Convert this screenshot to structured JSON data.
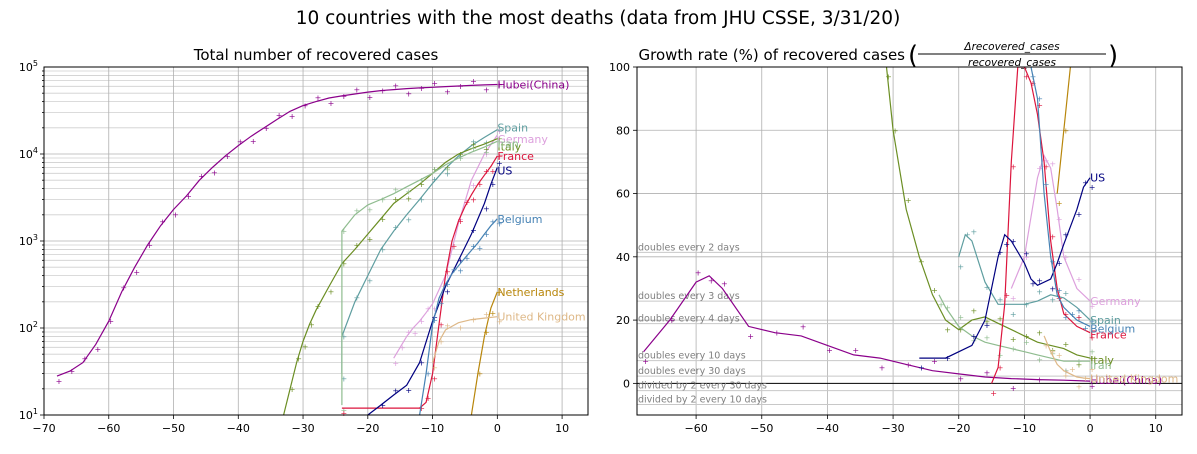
{
  "figure_title": "10 countries with the most deaths (data from JHU CSSE, 3/31/20)",
  "colors": {
    "Hubei(China)": "#8b008b",
    "Spain": "#5f9ea0",
    "Germany": "#dda0dd",
    "Italy": "#6b8e23",
    "Iran": "#8fbc8f",
    "France": "#dc143c",
    "US": "#000080",
    "Belgium": "#4682b4",
    "Netherlands": "#b8860b",
    "United Kingdom": "#deb887"
  },
  "chart_data": [
    {
      "type": "line",
      "title": "Total number of recovered cases",
      "yscale": "log",
      "xlim": [
        -70,
        14
      ],
      "ylim": [
        10,
        100000
      ],
      "xticks": [
        "−70",
        "−60",
        "−50",
        "−40",
        "−30",
        "−20",
        "−10",
        "0",
        "10"
      ],
      "yticks": [
        "10^1",
        "10^2",
        "10^3",
        "10^4",
        "10^5"
      ],
      "grid": true,
      "series": [
        {
          "name": "Hubei(China)",
          "label_value": 63000,
          "x": [
            -68,
            -66,
            -64,
            -62,
            -60,
            -58,
            -56,
            -54,
            -52,
            -50,
            -48,
            -46,
            -44,
            -42,
            -40,
            -38,
            -36,
            -34,
            -32,
            -30,
            -28,
            -26,
            -24,
            -22,
            -20,
            -18,
            -16,
            -14,
            -12,
            -10,
            -8,
            -6,
            -4,
            -2,
            0
          ],
          "y": [
            28,
            32,
            40,
            65,
            120,
            260,
            500,
            900,
            1500,
            2300,
            3300,
            5000,
            7000,
            9500,
            12500,
            16000,
            20000,
            25000,
            31000,
            36000,
            40000,
            44000,
            46500,
            49000,
            51500,
            53500,
            55000,
            56500,
            57500,
            58500,
            59500,
            60500,
            61500,
            62300,
            63000
          ]
        },
        {
          "name": "Spain",
          "label_value": 19000,
          "x": [
            -24,
            -24,
            -22,
            -20,
            -18,
            -16,
            -14,
            -12,
            -10,
            -8,
            -6,
            -4,
            -2,
            0
          ],
          "y": [
            30,
            80,
            200,
            400,
            800,
            1300,
            2000,
            3000,
            4600,
            6800,
            9500,
            12500,
            15500,
            19000
          ]
        },
        {
          "name": "Germany",
          "label_value": 16500,
          "x": [
            -16,
            -15,
            -14,
            -13,
            -12,
            -11,
            -10,
            -8,
            -6,
            -4,
            -2,
            0
          ],
          "y": [
            45,
            60,
            80,
            100,
            120,
            150,
            190,
            400,
            1600,
            5000,
            10000,
            16500
          ]
        },
        {
          "name": "Italy",
          "label_value": 15000,
          "x": [
            -33,
            -32,
            -31,
            -30,
            -29,
            -28,
            -26,
            -24,
            -22,
            -20,
            -18,
            -16,
            -14,
            -12,
            -10,
            -8,
            -6,
            -4,
            -2,
            0
          ],
          "y": [
            10,
            20,
            40,
            70,
            110,
            160,
            300,
            550,
            800,
            1200,
            1800,
            2700,
            3500,
            4500,
            6000,
            8000,
            10000,
            11500,
            13000,
            15000
          ]
        },
        {
          "name": "Iran",
          "label_value": 14000,
          "x": [
            -24,
            -24,
            -22,
            -20,
            -18,
            -16,
            -14,
            -12,
            -10,
            -8,
            -6,
            -4,
            -2,
            0
          ],
          "y": [
            13,
            1300,
            2000,
            2600,
            3000,
            3500,
            4200,
            5000,
            6000,
            7500,
            9000,
            10500,
            12000,
            14000
          ]
        },
        {
          "name": "France",
          "label_value": 9500,
          "x": [
            -24,
            -12,
            -11,
            -10,
            -9,
            -8,
            -7,
            -6,
            -5,
            -4,
            -3,
            -2,
            -1,
            0
          ],
          "y": [
            12,
            12,
            14,
            30,
            110,
            400,
            1000,
            1700,
            2500,
            3400,
            4500,
            5700,
            7200,
            9500
          ]
        },
        {
          "name": "US",
          "label_value": 7000,
          "x": [
            -20,
            -18,
            -16,
            -14,
            -12,
            -10,
            -8,
            -6,
            -4,
            -2,
            -1,
            0
          ],
          "y": [
            10,
            13,
            17,
            22,
            40,
            120,
            300,
            600,
            1200,
            2700,
            4500,
            7000
          ]
        },
        {
          "name": "Belgium",
          "label_value": 1800,
          "x": [
            -12,
            -11,
            -10,
            -9,
            -8,
            -7,
            -6,
            -5,
            -4,
            -3,
            -2,
            -1,
            0
          ],
          "y": [
            10,
            30,
            110,
            220,
            320,
            420,
            520,
            640,
            780,
            950,
            1200,
            1500,
            1800
          ]
        },
        {
          "name": "Netherlands",
          "label_value": 260,
          "x": [
            -4,
            -3,
            -2,
            -1,
            0
          ],
          "y": [
            10,
            30,
            80,
            170,
            260
          ]
        },
        {
          "name": "United Kingdom",
          "label_value": 135,
          "x": [
            -10,
            -9,
            -8,
            -6,
            -4,
            -2,
            0
          ],
          "y": [
            40,
            70,
            95,
            115,
            125,
            130,
            135
          ]
        }
      ]
    },
    {
      "type": "line",
      "title": "Growth rate (%) of recovered cases",
      "title_fraction": {
        "numerator": "Δrecovered_cases",
        "denominator": "recovered_cases"
      },
      "xlim": [
        -69,
        14
      ],
      "ylim": [
        -10,
        100
      ],
      "xticks": [
        "−60",
        "−50",
        "−40",
        "−30",
        "−20",
        "−10",
        "0",
        "10"
      ],
      "yticks": [
        "0",
        "20",
        "40",
        "60",
        "80",
        "100"
      ],
      "grid": true,
      "reference_lines": [
        {
          "label": "doubles every 2 days",
          "value": 41.4
        },
        {
          "label": "doubles every 3 days",
          "value": 26
        },
        {
          "label": "doubles every 4 days",
          "value": 18.9
        },
        {
          "label": "doubles every 10 days",
          "value": 7.2
        },
        {
          "label": "doubles every 30 days",
          "value": 2.3
        },
        {
          "label": "divided by 2 every 30 days",
          "value": -2.3
        },
        {
          "label": "divided by 2 every 10 days",
          "value": -6.7
        }
      ],
      "series": [
        {
          "name": "Hubei(China)",
          "label_value": 1,
          "x": [
            -68,
            -64,
            -60,
            -58,
            -56,
            -52,
            -48,
            -44,
            -40,
            -36,
            -32,
            -28,
            -24,
            -20,
            -16,
            -12,
            -8,
            -4,
            0
          ],
          "y": [
            10,
            20,
            32,
            34,
            30,
            18,
            16,
            15,
            12,
            9,
            8,
            6,
            4,
            3,
            2,
            1.5,
            1.2,
            1,
            0.7
          ]
        },
        {
          "name": "Spain",
          "label_value": 20,
          "x": [
            -20,
            -19,
            -18,
            -16,
            -14,
            -12,
            -10,
            -8,
            -6,
            -4,
            -2,
            0
          ],
          "y": [
            40,
            47,
            45,
            32,
            25,
            25,
            25,
            26,
            28,
            27,
            24,
            20
          ]
        },
        {
          "name": "Germany",
          "label_value": 26,
          "x": [
            -12,
            -10,
            -8,
            -7,
            -6,
            -5,
            -4,
            -2,
            0
          ],
          "y": [
            30,
            40,
            65,
            72,
            68,
            55,
            40,
            30,
            26
          ]
        },
        {
          "name": "Italy",
          "label_value": 8,
          "x": [
            -31,
            -30,
            -28,
            -26,
            -24,
            -22,
            -20,
            -18,
            -16,
            -14,
            -12,
            -10,
            -8,
            -6,
            -4,
            -2,
            0
          ],
          "y": [
            100,
            80,
            55,
            40,
            28,
            20,
            17,
            20,
            21,
            19,
            17,
            15,
            13,
            12,
            11,
            9,
            8
          ]
        },
        {
          "name": "Iran",
          "label_value": 7,
          "x": [
            -23,
            -22,
            -20,
            -18,
            -16,
            -14,
            -12,
            -10,
            -8,
            -6,
            -4,
            -2,
            0
          ],
          "y": [
            28,
            24,
            18,
            15,
            13,
            12,
            11,
            10,
            9,
            8,
            7,
            7,
            7
          ]
        },
        {
          "name": "France",
          "label_value": 16,
          "x": [
            -15,
            -14,
            -13,
            -12,
            -11,
            -10,
            -9,
            -8,
            -7,
            -6,
            -5,
            -4,
            -2,
            0
          ],
          "y": [
            0,
            5,
            25,
            70,
            100,
            100,
            95,
            85,
            70,
            45,
            30,
            22,
            18,
            16
          ]
        },
        {
          "name": "US",
          "label_value": 65,
          "x": [
            -26,
            -22,
            -18,
            -16,
            -14,
            -13,
            -12,
            -10,
            -9,
            -8,
            -6,
            -5,
            -4,
            -2,
            -1,
            0
          ],
          "y": [
            8,
            8,
            12,
            20,
            40,
            47,
            45,
            38,
            33,
            31,
            33,
            38,
            44,
            55,
            62,
            65
          ]
        },
        {
          "name": "Belgium",
          "label_value": 18,
          "x": [
            -9,
            -8,
            -7,
            -6,
            -5,
            -4,
            -3,
            -2,
            -1,
            0
          ],
          "y": [
            100,
            90,
            60,
            40,
            28,
            24,
            22,
            20,
            19,
            18
          ]
        },
        {
          "name": "Netherlands",
          "label_value": 100,
          "x": [
            -5,
            -4,
            -3
          ],
          "y": [
            60,
            80,
            100
          ]
        },
        {
          "name": "United Kingdom",
          "label_value": 1.5,
          "x": [
            -7,
            -6,
            -5,
            -4,
            -3,
            -2,
            -1,
            0
          ],
          "y": [
            15,
            10,
            6,
            4,
            3,
            2,
            1.7,
            1.5
          ]
        }
      ]
    }
  ]
}
